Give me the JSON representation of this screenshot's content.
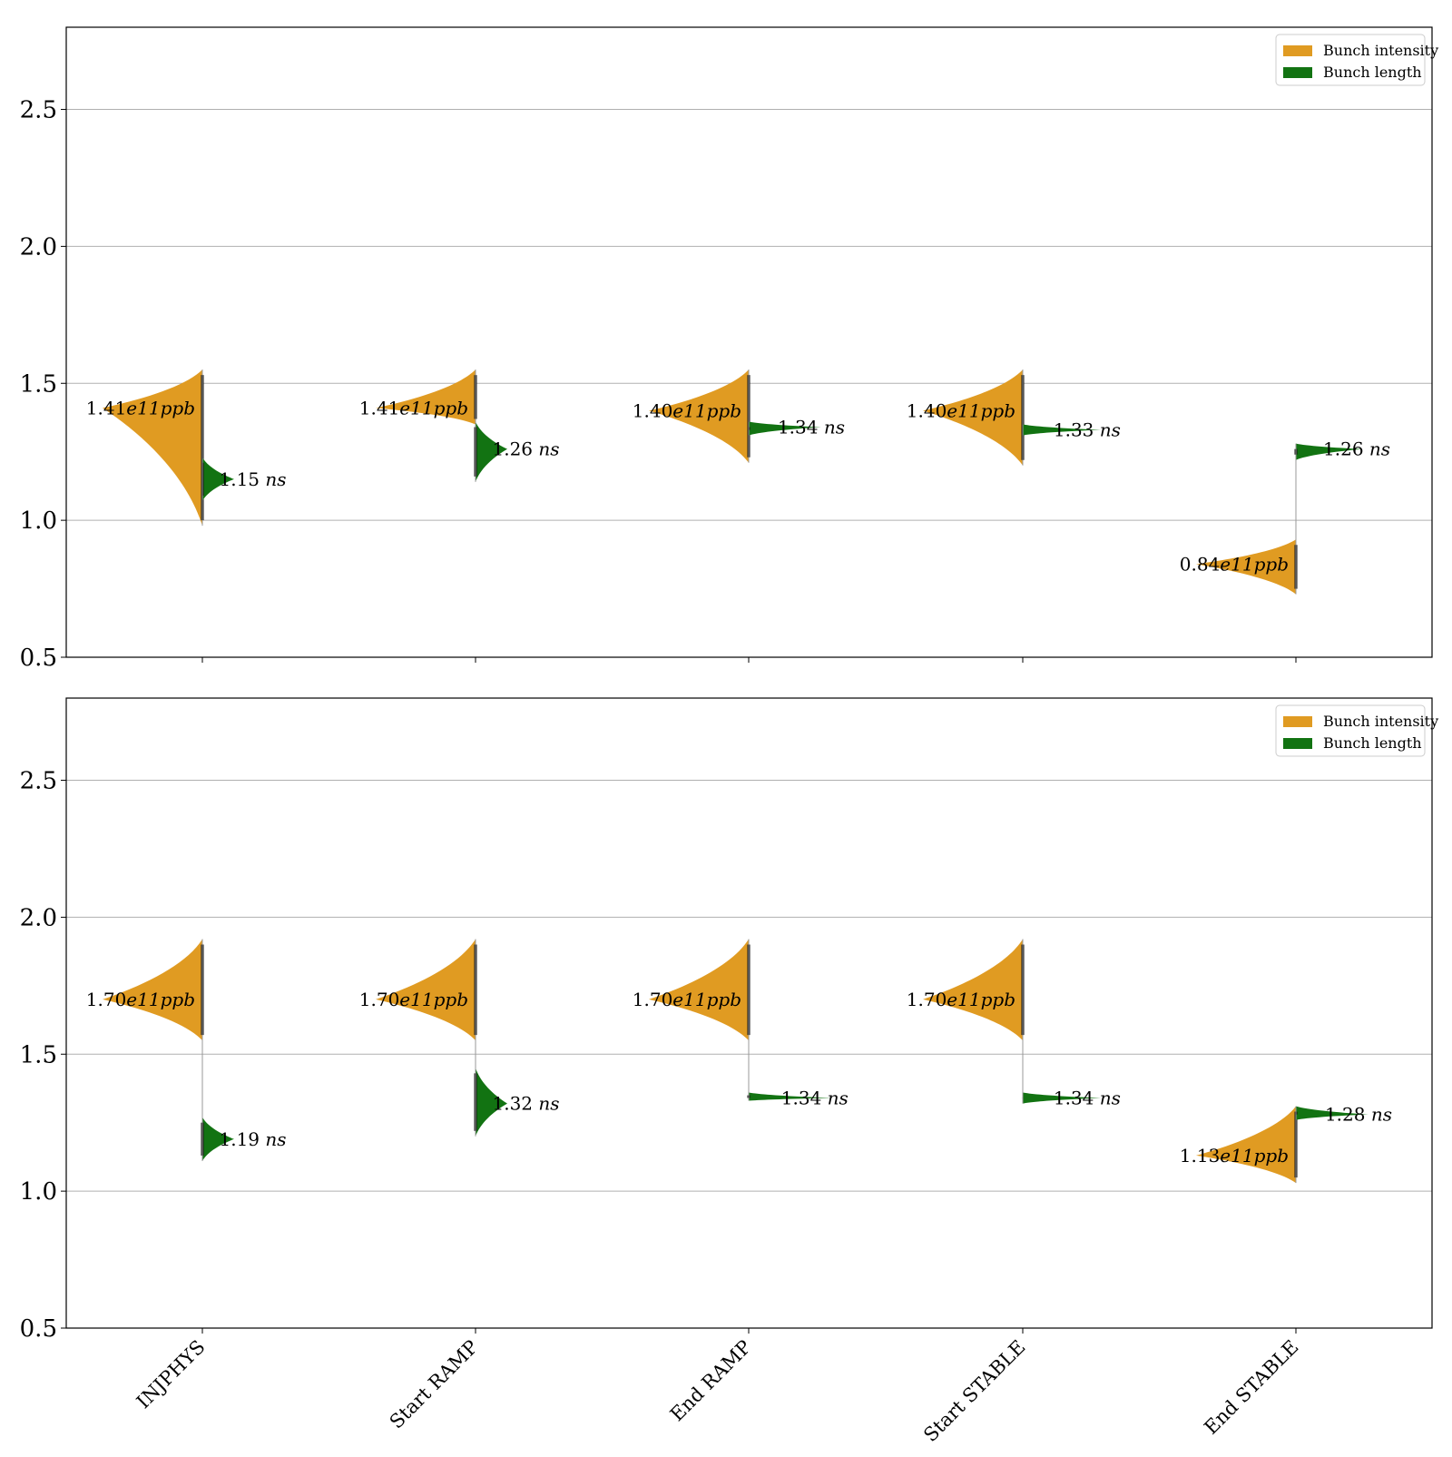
{
  "colors": {
    "intensity": "#e09b22",
    "length": "#127312",
    "grid": "#b0b0b0",
    "axis": "#000000",
    "median": "#111111"
  },
  "legend": {
    "position": "top-right",
    "intensity_label": "Bunch intensity",
    "length_label": "Bunch length"
  },
  "chart_data": [
    {
      "type": "violin",
      "ylim": [
        0.5,
        2.8
      ],
      "yticks": [
        "0.5",
        "1.0",
        "1.5",
        "2.0",
        "2.5"
      ],
      "ytick_values": [
        0.5,
        1.0,
        1.5,
        2.0,
        2.5
      ],
      "grid": true,
      "categories": [
        "INJPHYS",
        "Start RAMP",
        "End RAMP",
        "Start STABLE",
        "End STABLE"
      ],
      "series": [
        {
          "name": "Bunch intensity",
          "side": "left",
          "values": [
            1.41,
            1.41,
            1.4,
            1.4,
            0.84
          ],
          "labels": [
            "1.41e11ppb",
            "1.41e11ppb",
            "1.40e11ppb",
            "1.40e11ppb",
            "0.84e11ppb"
          ],
          "min": [
            0.98,
            1.35,
            1.21,
            1.2,
            0.73
          ],
          "max": [
            1.55,
            1.55,
            1.55,
            1.55,
            0.93
          ]
        },
        {
          "name": "Bunch length",
          "side": "right",
          "values": [
            1.15,
            1.26,
            1.34,
            1.33,
            1.26
          ],
          "labels": [
            "1.15 ns",
            "1.26 ns",
            "1.34 ns",
            "1.33 ns",
            "1.26 ns"
          ],
          "min": [
            1.07,
            1.14,
            1.31,
            1.31,
            1.22
          ],
          "max": [
            1.23,
            1.36,
            1.36,
            1.35,
            1.28
          ]
        }
      ]
    },
    {
      "type": "violin",
      "ylim": [
        0.5,
        2.8
      ],
      "yticks": [
        "0.5",
        "1.0",
        "1.5",
        "2.0",
        "2.5"
      ],
      "ytick_values": [
        0.5,
        1.0,
        1.5,
        2.0,
        2.5
      ],
      "grid": true,
      "categories": [
        "INJPHYS",
        "Start RAMP",
        "End RAMP",
        "Start STABLE",
        "End STABLE"
      ],
      "xtick_labels": [
        "INJPHYS",
        "Start RAMP",
        "End RAMP",
        "Start STABLE",
        "End STABLE"
      ],
      "series": [
        {
          "name": "Bunch intensity",
          "side": "left",
          "values": [
            1.7,
            1.7,
            1.7,
            1.7,
            1.13
          ],
          "labels": [
            "1.70e11ppb",
            "1.70e11ppb",
            "1.70e11ppb",
            "1.70e11ppb",
            "1.13e11ppb"
          ],
          "min": [
            1.55,
            1.55,
            1.55,
            1.55,
            1.03
          ],
          "max": [
            1.92,
            1.92,
            1.92,
            1.92,
            1.31
          ]
        },
        {
          "name": "Bunch length",
          "side": "right",
          "values": [
            1.19,
            1.32,
            1.34,
            1.34,
            1.28
          ],
          "labels": [
            "1.19 ns",
            "1.32 ns",
            "1.34 ns",
            "1.34 ns",
            "1.28 ns"
          ],
          "min": [
            1.11,
            1.2,
            1.33,
            1.32,
            1.26
          ],
          "max": [
            1.27,
            1.45,
            1.36,
            1.36,
            1.31
          ]
        }
      ]
    }
  ]
}
